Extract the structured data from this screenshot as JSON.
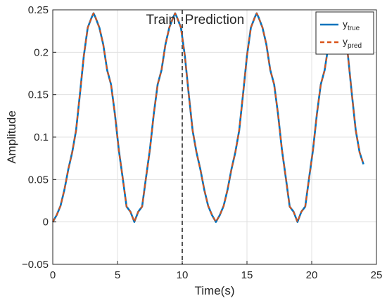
{
  "chart_data": {
    "type": "line",
    "xlabel": "Time(s)",
    "ylabel": "Amplitude",
    "xlim": [
      0,
      25
    ],
    "ylim": [
      -0.05,
      0.25
    ],
    "xticks": [
      0,
      5,
      10,
      15,
      20,
      25
    ],
    "xtick_labels": [
      "0",
      "5",
      "10",
      "15",
      "20",
      "25"
    ],
    "yticks": [
      -0.05,
      0,
      0.05,
      0.1,
      0.15,
      0.2,
      0.25
    ],
    "ytick_labels": [
      "−0.05",
      "0",
      "0.05",
      "0.1",
      "0.15",
      "0.2",
      "0.25"
    ],
    "grid": true,
    "legend_position": "top-right",
    "annotations": [
      {
        "text": "Train",
        "x": 7.2,
        "y": 0.235
      },
      {
        "text": "Prediction",
        "x": 10.2,
        "y": 0.235
      }
    ],
    "divider": {
      "x": 10,
      "style": "dashed",
      "color": "#555555"
    },
    "series": [
      {
        "legend_main": "y",
        "legend_sub": "true",
        "color": "#0072BD",
        "style": "solid",
        "x": [
          0,
          0.3,
          0.6,
          0.9,
          1.2,
          1.5,
          1.8,
          2.1,
          2.4,
          2.7,
          3.0,
          3.15,
          3.3,
          3.6,
          3.9,
          4.2,
          4.5,
          4.8,
          5.1,
          5.4,
          5.7,
          6.0,
          6.3,
          6.6,
          6.9,
          7.2,
          7.5,
          7.8,
          8.1,
          8.4,
          8.7,
          9.0,
          9.3,
          9.45,
          9.6,
          9.9,
          10.2,
          10.5,
          10.8,
          11.1,
          11.4,
          11.7,
          12.0,
          12.3,
          12.6,
          12.9,
          13.2,
          13.5,
          13.8,
          14.1,
          14.4,
          14.7,
          15.0,
          15.3,
          15.6,
          15.75,
          15.9,
          16.2,
          16.5,
          16.8,
          17.1,
          17.4,
          17.7,
          18.0,
          18.3,
          18.6,
          18.9,
          19.2,
          19.5,
          19.8,
          20.1,
          20.4,
          20.7,
          21.0,
          21.3,
          21.6,
          21.9,
          22.05,
          22.2,
          22.5,
          22.8,
          23.1,
          23.4,
          23.7,
          24.0
        ],
        "y": [
          0.0,
          0.008,
          0.019,
          0.038,
          0.062,
          0.082,
          0.108,
          0.151,
          0.196,
          0.229,
          0.241,
          0.246,
          0.241,
          0.229,
          0.209,
          0.179,
          0.162,
          0.127,
          0.085,
          0.052,
          0.018,
          0.012,
          0.0,
          0.012,
          0.018,
          0.052,
          0.085,
          0.127,
          0.162,
          0.179,
          0.209,
          0.229,
          0.241,
          0.246,
          0.241,
          0.229,
          0.196,
          0.151,
          0.108,
          0.082,
          0.062,
          0.038,
          0.019,
          0.008,
          0.0,
          0.008,
          0.019,
          0.038,
          0.062,
          0.082,
          0.108,
          0.151,
          0.196,
          0.229,
          0.241,
          0.246,
          0.241,
          0.229,
          0.209,
          0.179,
          0.162,
          0.127,
          0.085,
          0.052,
          0.018,
          0.012,
          0.0,
          0.012,
          0.018,
          0.052,
          0.085,
          0.127,
          0.162,
          0.179,
          0.209,
          0.229,
          0.241,
          0.246,
          0.241,
          0.229,
          0.196,
          0.151,
          0.108,
          0.082,
          0.068
        ]
      },
      {
        "legend_main": "y",
        "legend_sub": "pred",
        "color": "#D95319",
        "style": "dashed",
        "x": [
          0,
          0.3,
          0.6,
          0.9,
          1.2,
          1.5,
          1.8,
          2.1,
          2.4,
          2.7,
          3.0,
          3.15,
          3.3,
          3.6,
          3.9,
          4.2,
          4.5,
          4.8,
          5.1,
          5.4,
          5.7,
          6.0,
          6.3,
          6.6,
          6.9,
          7.2,
          7.5,
          7.8,
          8.1,
          8.4,
          8.7,
          9.0,
          9.3,
          9.45,
          9.6,
          9.9,
          10.2,
          10.5,
          10.8,
          11.1,
          11.4,
          11.7,
          12.0,
          12.3,
          12.6,
          12.9,
          13.2,
          13.5,
          13.8,
          14.1,
          14.4,
          14.7,
          15.0,
          15.3,
          15.6,
          15.75,
          15.9,
          16.2,
          16.5,
          16.8,
          17.1,
          17.4,
          17.7,
          18.0,
          18.3,
          18.6,
          18.9,
          19.2,
          19.5,
          19.8,
          20.1,
          20.4,
          20.7,
          21.0,
          21.3,
          21.6,
          21.9,
          22.05,
          22.2,
          22.5,
          22.8,
          23.1,
          23.4,
          23.7,
          24.0
        ],
        "y": [
          0.0,
          0.008,
          0.019,
          0.038,
          0.062,
          0.082,
          0.108,
          0.151,
          0.196,
          0.229,
          0.241,
          0.246,
          0.241,
          0.229,
          0.209,
          0.179,
          0.162,
          0.127,
          0.085,
          0.052,
          0.018,
          0.012,
          0.0,
          0.012,
          0.018,
          0.052,
          0.085,
          0.127,
          0.162,
          0.179,
          0.209,
          0.229,
          0.241,
          0.246,
          0.241,
          0.229,
          0.196,
          0.151,
          0.108,
          0.082,
          0.062,
          0.038,
          0.019,
          0.008,
          0.0,
          0.008,
          0.019,
          0.038,
          0.062,
          0.082,
          0.108,
          0.151,
          0.196,
          0.229,
          0.241,
          0.246,
          0.241,
          0.229,
          0.209,
          0.179,
          0.162,
          0.127,
          0.085,
          0.052,
          0.018,
          0.012,
          0.0,
          0.012,
          0.018,
          0.052,
          0.085,
          0.127,
          0.162,
          0.179,
          0.209,
          0.229,
          0.241,
          0.246,
          0.241,
          0.229,
          0.196,
          0.151,
          0.108,
          0.082,
          0.068
        ]
      }
    ]
  }
}
